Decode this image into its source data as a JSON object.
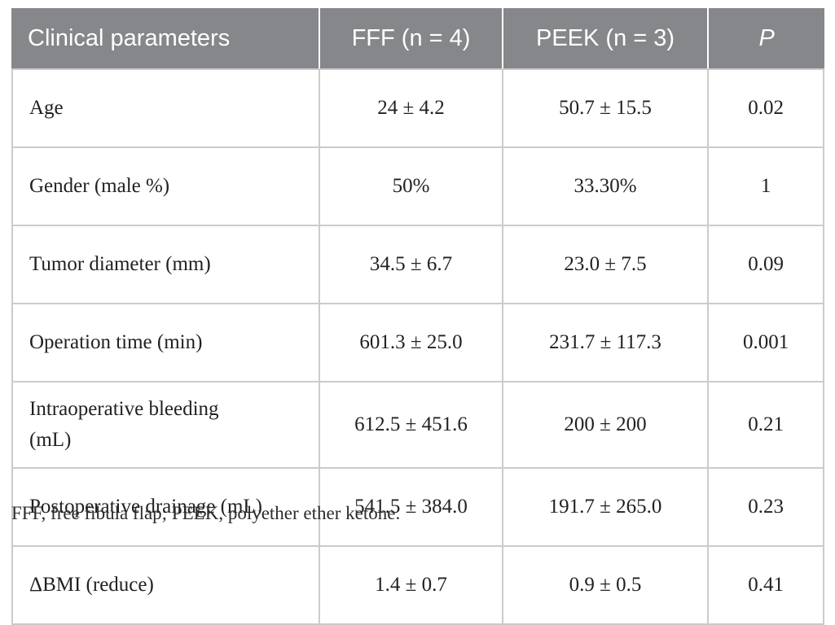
{
  "table": {
    "title_semantic": "Clinical parameters comparison table",
    "columns": [
      "Clinical parameters",
      "FFF (n = 4)",
      "PEEK (n = 3)",
      "P"
    ],
    "rows": [
      [
        "Age",
        "24 ± 4.2",
        "50.7 ± 15.5",
        "0.02"
      ],
      [
        "Gender (male %)",
        "50%",
        "33.30%",
        "1"
      ],
      [
        "Tumor diameter (mm)",
        "34.5 ± 6.7",
        "23.0 ± 7.5",
        "0.09"
      ],
      [
        "Operation time (min)",
        "601.3 ± 25.0",
        "231.7 ± 117.3",
        "0.001"
      ],
      [
        "Intraoperative bleeding\n(mL)",
        "612.5 ± 451.6",
        "200 ± 200",
        "0.21"
      ],
      [
        "Postoperative drainage (mL)",
        "541.5 ± 384.0",
        "191.7 ± 265.0",
        "0.23"
      ],
      [
        "ΔBMI (reduce)",
        "1.4 ± 0.7",
        "0.9 ± 0.5",
        "0.41"
      ]
    ],
    "footnote": "FFF, free fibula flap; PEEK, polyether ether ketone."
  },
  "colors": {
    "header_background": "#85878a",
    "header_text": "#ffffff",
    "body_text": "#231f20",
    "border": "#cbcbcb"
  }
}
